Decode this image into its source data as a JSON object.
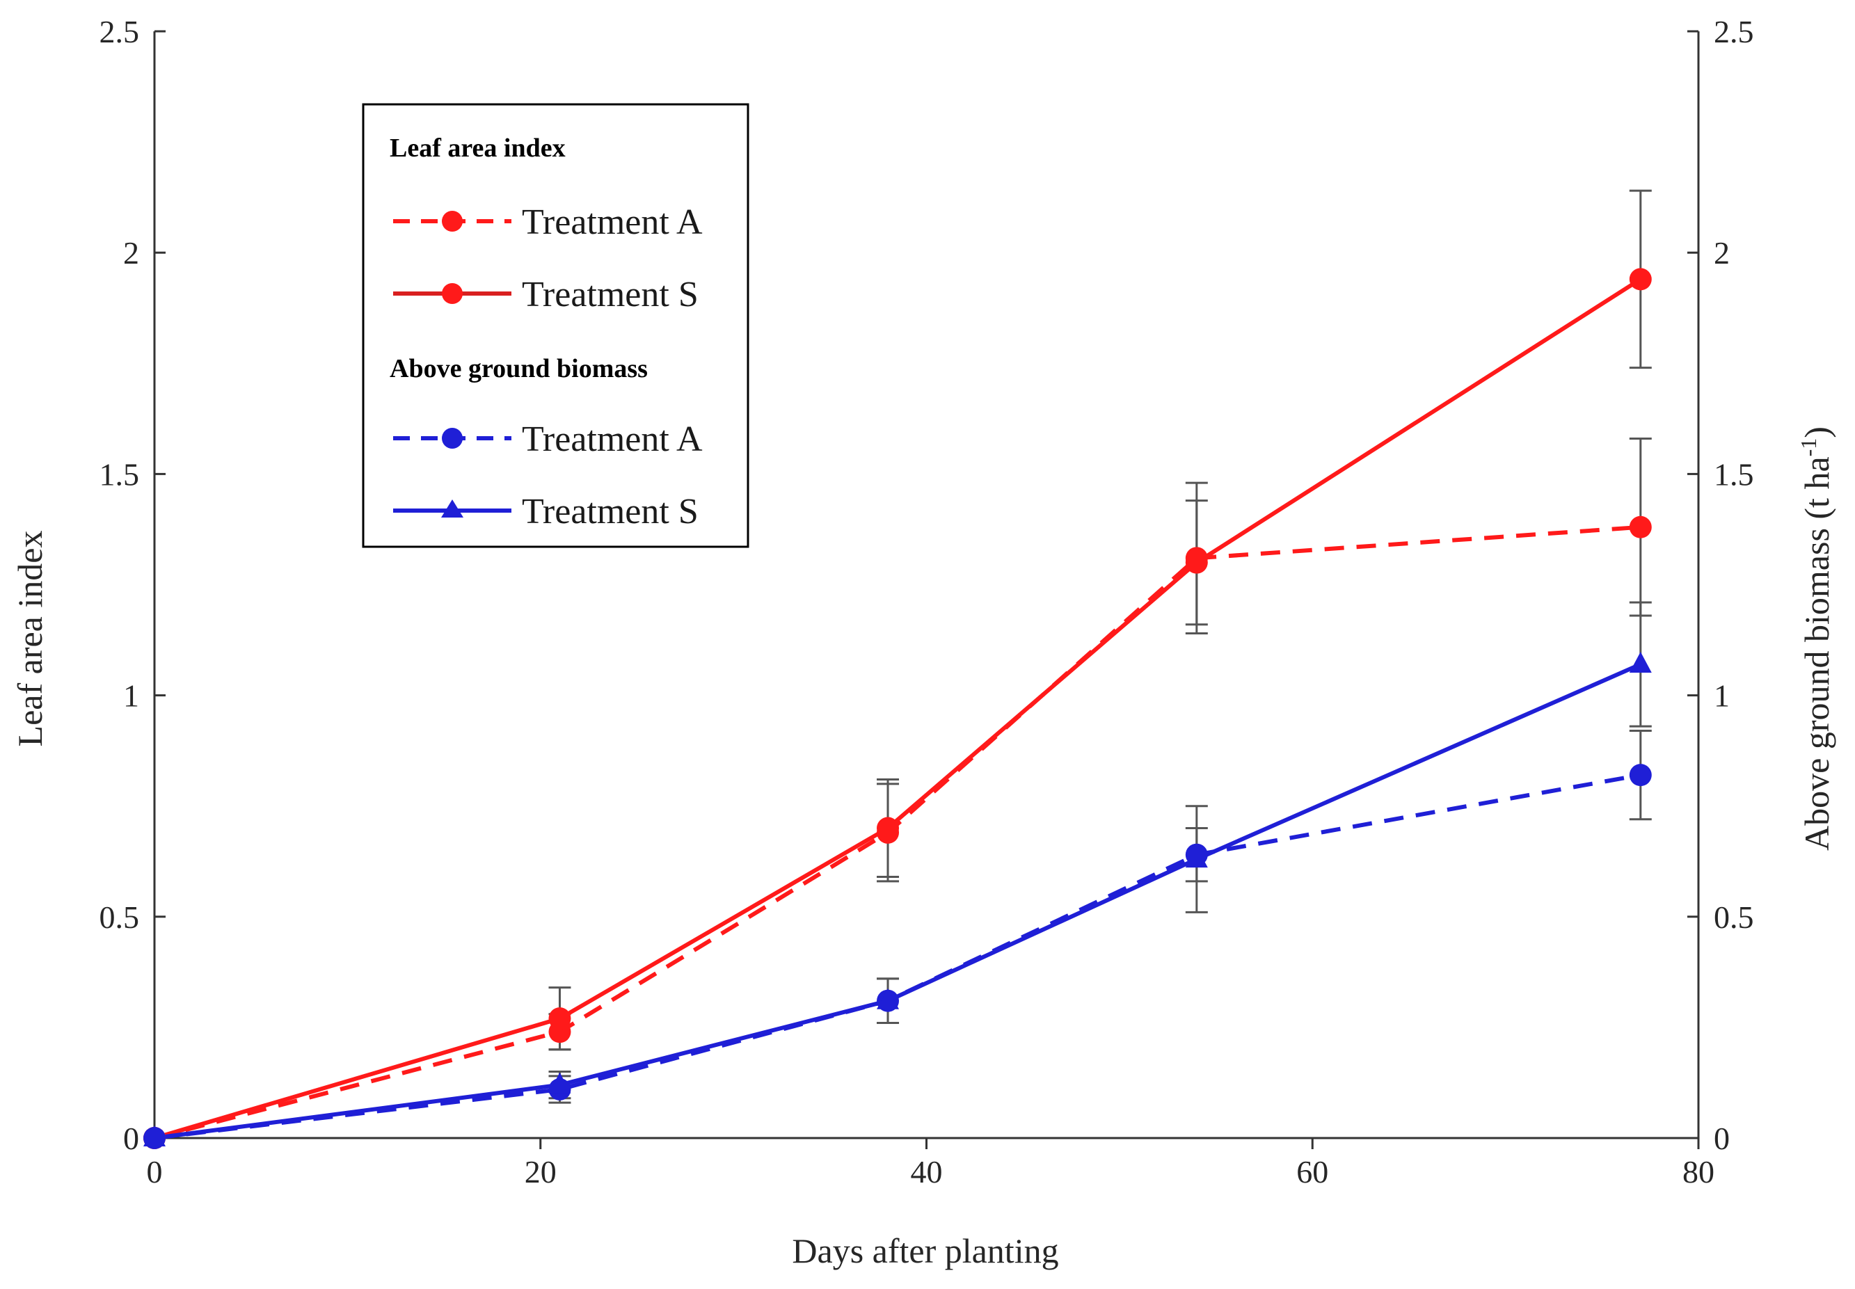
{
  "colors": {
    "red": "#ff1a1a",
    "blue": "#1f1fd6",
    "error": "#555555",
    "axis": "#333333"
  },
  "chart_data": {
    "type": "line",
    "xlabel": "Days after planting",
    "ylabel_left": "Leaf area index",
    "ylabel_right_main": "Above ground biomass (t ha",
    "ylabel_right_sup": "-1",
    "ylabel_right_end": ")",
    "xlim": [
      0,
      80
    ],
    "ylim": [
      0,
      2.5
    ],
    "ylim_right": [
      0,
      2.5
    ],
    "x_ticks": [
      "0",
      "20",
      "40",
      "60",
      "80"
    ],
    "y_ticks": [
      "0",
      "0.5",
      "1",
      "1.5",
      "2",
      "2.5"
    ],
    "y_ticks_right": [
      "0",
      "0.5",
      "1",
      "1.5",
      "2",
      "2.5"
    ],
    "x_tick_values": [
      0,
      20,
      40,
      60,
      80
    ],
    "y_tick_values": [
      0,
      0.5,
      1,
      1.5,
      2,
      2.5
    ],
    "x": [
      0,
      21,
      38,
      54,
      77
    ],
    "legend": {
      "group1_title": "Leaf area index",
      "group1_a": "Treatment A",
      "group1_s": "Treatment S",
      "group2_title": "Above ground biomass",
      "group2_a": "Treatment A",
      "group2_s": "Treatment S"
    },
    "series": [
      {
        "name": "Leaf area index - Treatment A",
        "color": "red",
        "dash": true,
        "marker": "circle",
        "values": [
          0,
          0.24,
          0.69,
          1.31,
          1.38
        ],
        "err": [
          0,
          0.04,
          0.11,
          0.17,
          0.2
        ]
      },
      {
        "name": "Leaf area index - Treatment S",
        "color": "red",
        "dash": false,
        "marker": "circle",
        "values": [
          0,
          0.27,
          0.7,
          1.3,
          1.94
        ],
        "err": [
          0,
          0.07,
          0.11,
          0.14,
          0.2
        ]
      },
      {
        "name": "Above ground biomass - Treatment A",
        "color": "blue",
        "dash": true,
        "marker": "circle",
        "values": [
          0,
          0.11,
          0.31,
          0.64,
          0.82
        ],
        "err": [
          0,
          0.03,
          0.05,
          0.06,
          0.1
        ]
      },
      {
        "name": "Above ground biomass - Treatment S",
        "color": "blue",
        "dash": false,
        "marker": "triangle",
        "values": [
          0,
          0.12,
          0.31,
          0.63,
          1.07
        ],
        "err": [
          0,
          0.03,
          0.05,
          0.12,
          0.14
        ]
      }
    ]
  }
}
